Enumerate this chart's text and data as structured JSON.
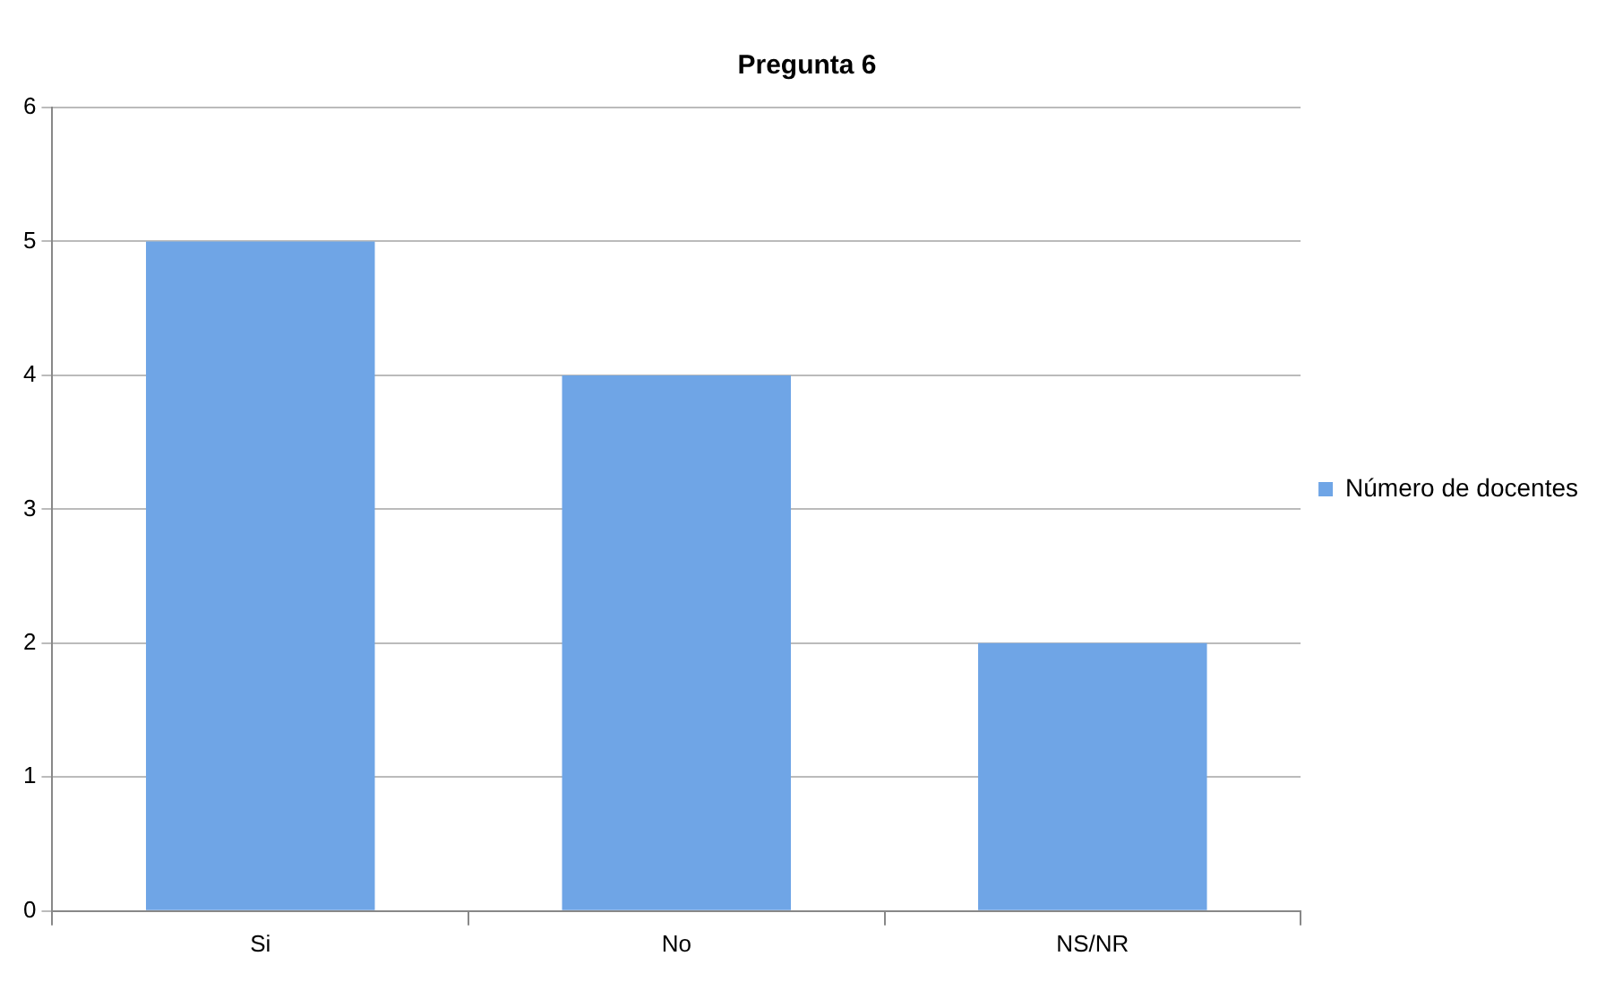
{
  "chart_data": {
    "type": "bar",
    "title": "Pregunta 6",
    "categories": [
      "Si",
      "No",
      "NS/NR"
    ],
    "series": [
      {
        "name": "Número de docentes",
        "color": "#6fa5e6",
        "values": [
          5,
          4,
          2
        ]
      }
    ],
    "ylim": [
      0,
      6
    ],
    "yticks": [
      0,
      1,
      2,
      3,
      4,
      5,
      6
    ],
    "grid": "y",
    "legend": "right"
  }
}
